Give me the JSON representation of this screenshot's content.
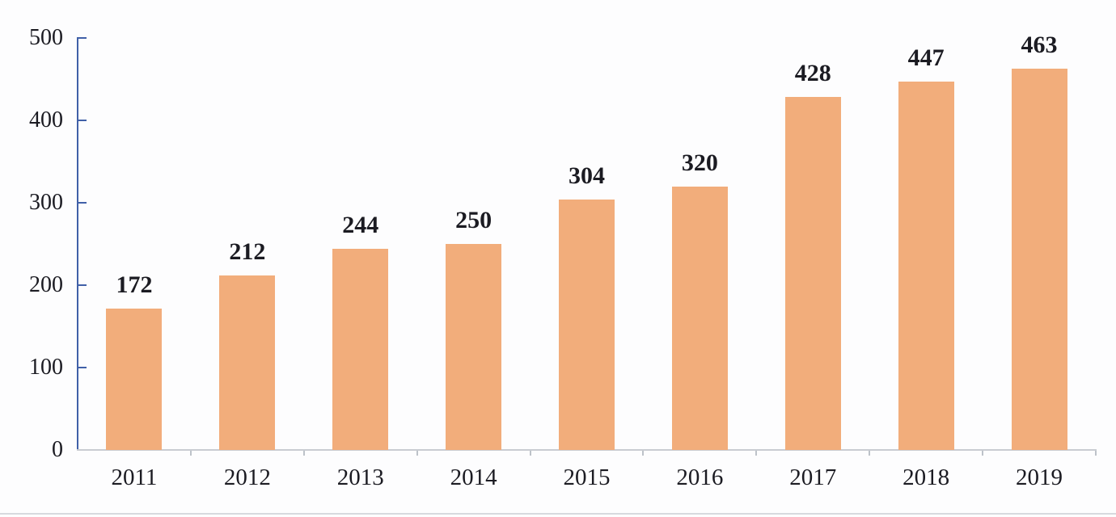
{
  "chart_data": {
    "type": "bar",
    "title": "",
    "xlabel": "",
    "ylabel": "",
    "categories": [
      "2011",
      "2012",
      "2013",
      "2014",
      "2015",
      "2016",
      "2017",
      "2018",
      "2019"
    ],
    "values": [
      172,
      212,
      244,
      250,
      304,
      320,
      428,
      447,
      463
    ],
    "ylim": [
      0,
      500
    ],
    "yticks": [
      0,
      100,
      200,
      300,
      400,
      500
    ],
    "grid": "off",
    "legend": "none",
    "data_labels": "above-bars",
    "colors": {
      "bar": "#F2AD7B",
      "y_axis": "#4060A8",
      "x_axis": "#C9CCD2",
      "x_tick": "#BDC2C9",
      "text": "#1B1B22",
      "background": "#FDFDFE",
      "bottom_rule": "#D7DADE"
    }
  }
}
